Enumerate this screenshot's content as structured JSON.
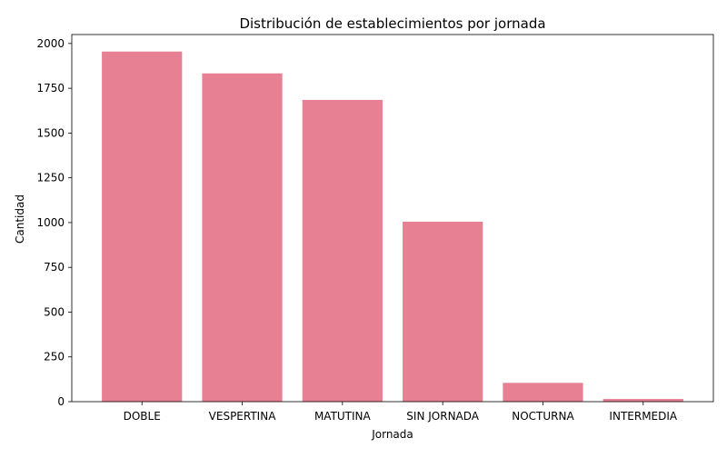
{
  "chart_data": {
    "type": "bar",
    "title": "Distribución de establecimientos por jornada",
    "xlabel": "Jornada",
    "ylabel": "Cantidad",
    "categories": [
      "DOBLE",
      "VESPERTINA",
      "MATUTINA",
      "SIN JORNADA",
      "NOCTURNA",
      "INTERMEDIA"
    ],
    "values": [
      1955,
      1833,
      1685,
      1005,
      105,
      15
    ],
    "ylim": [
      0,
      2050
    ],
    "yticks": [
      0,
      250,
      500,
      750,
      1000,
      1250,
      1500,
      1750,
      2000
    ],
    "bar_color": "#e88093",
    "grid": false,
    "legend": "none"
  }
}
